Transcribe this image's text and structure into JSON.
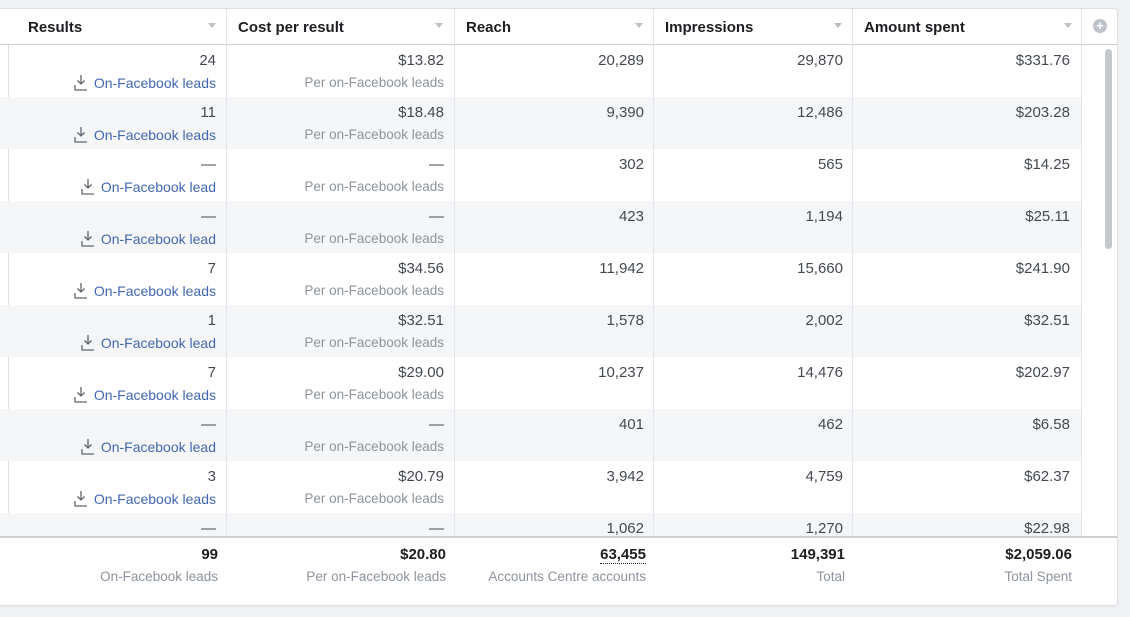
{
  "columns": [
    {
      "label": "Results"
    },
    {
      "label": "Cost per result"
    },
    {
      "label": "Reach"
    },
    {
      "label": "Impressions"
    },
    {
      "label": "Amount spent"
    }
  ],
  "rows": [
    {
      "results": "24",
      "result_type": "On-Facebook leads",
      "cost": "$13.82",
      "cost_sub": "Per on-Facebook leads",
      "reach": "20,289",
      "impressions": "29,870",
      "spent": "$331.76"
    },
    {
      "results": "11",
      "result_type": "On-Facebook leads",
      "cost": "$18.48",
      "cost_sub": "Per on-Facebook leads",
      "reach": "9,390",
      "impressions": "12,486",
      "spent": "$203.28"
    },
    {
      "results": "—",
      "result_type": "On-Facebook lead",
      "cost": "—",
      "cost_sub": "Per on-Facebook leads",
      "reach": "302",
      "impressions": "565",
      "spent": "$14.25"
    },
    {
      "results": "—",
      "result_type": "On-Facebook lead",
      "cost": "—",
      "cost_sub": "Per on-Facebook leads",
      "reach": "423",
      "impressions": "1,194",
      "spent": "$25.11"
    },
    {
      "results": "7",
      "result_type": "On-Facebook leads",
      "cost": "$34.56",
      "cost_sub": "Per on-Facebook leads",
      "reach": "11,942",
      "impressions": "15,660",
      "spent": "$241.90"
    },
    {
      "results": "1",
      "result_type": "On-Facebook lead",
      "cost": "$32.51",
      "cost_sub": "Per on-Facebook leads",
      "reach": "1,578",
      "impressions": "2,002",
      "spent": "$32.51"
    },
    {
      "results": "7",
      "result_type": "On-Facebook leads",
      "cost": "$29.00",
      "cost_sub": "Per on-Facebook leads",
      "reach": "10,237",
      "impressions": "14,476",
      "spent": "$202.97"
    },
    {
      "results": "—",
      "result_type": "On-Facebook lead",
      "cost": "—",
      "cost_sub": "Per on-Facebook leads",
      "reach": "401",
      "impressions": "462",
      "spent": "$6.58"
    },
    {
      "results": "3",
      "result_type": "On-Facebook leads",
      "cost": "$20.79",
      "cost_sub": "Per on-Facebook leads",
      "reach": "3,942",
      "impressions": "4,759",
      "spent": "$62.37"
    },
    {
      "results": "—",
      "result_type": "",
      "cost": "—",
      "cost_sub": "",
      "reach": "1,062",
      "impressions": "1,270",
      "spent": "$22.98"
    }
  ],
  "totals": {
    "results": "99",
    "results_sub": "On-Facebook leads",
    "cost": "$20.80",
    "cost_sub": "Per on-Facebook leads",
    "reach": "63,455",
    "reach_sub": "Accounts Centre accounts",
    "impressions": "149,391",
    "impressions_sub": "Total",
    "spent": "$2,059.06",
    "spent_sub": "Total Spent"
  },
  "icons": {
    "lead": "download-arrow-icon",
    "add_column": "plus-circle-icon",
    "sort": "sort-caret-icon"
  },
  "colors": {
    "link": "#4267b2",
    "muted": "#8d949e",
    "row_alt": "#f5f6f7"
  }
}
